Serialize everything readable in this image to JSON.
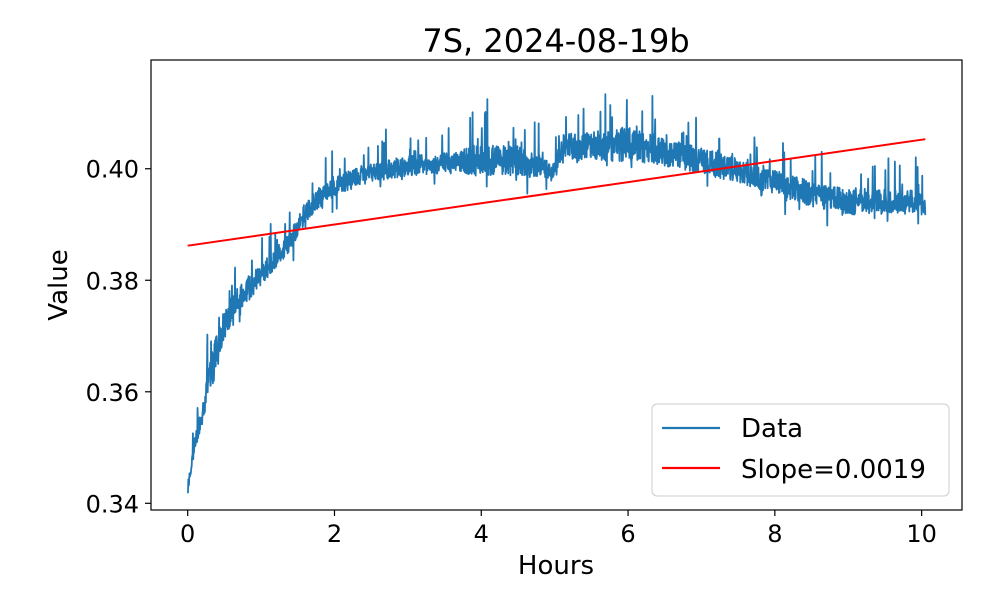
{
  "chart_data": {
    "type": "line",
    "title": "7S, 2024-08-19b",
    "xlabel": "Hours",
    "ylabel": "Value",
    "xlim": [
      -0.5,
      10.55
    ],
    "ylim": [
      0.3388,
      0.4195
    ],
    "x_ticks": [
      0,
      2,
      4,
      6,
      8,
      10
    ],
    "x_tick_labels": [
      "0",
      "2",
      "4",
      "6",
      "8",
      "10"
    ],
    "y_ticks": [
      0.34,
      0.36,
      0.38,
      0.4
    ],
    "y_tick_labels": [
      "0.34",
      "0.36",
      "0.38",
      "0.40"
    ],
    "legend_position": "lower-right",
    "series": [
      {
        "name": "Data",
        "color": "#1f77b4",
        "style": "noisy-line",
        "x": [
          0,
          0.05,
          0.1,
          0.2,
          0.3,
          0.4,
          0.5,
          0.6,
          0.8,
          1.0,
          1.2,
          1.4,
          1.6,
          1.8,
          2.0,
          2.3,
          2.6,
          3.0,
          3.5,
          4.0,
          4.5,
          5.0,
          5.1,
          5.5,
          6.0,
          6.5,
          7.0,
          7.5,
          8.0,
          8.5,
          9.0,
          9.5,
          10.0,
          10.05
        ],
        "values": [
          0.342,
          0.347,
          0.351,
          0.356,
          0.363,
          0.368,
          0.372,
          0.375,
          0.378,
          0.381,
          0.384,
          0.387,
          0.392,
          0.395,
          0.397,
          0.3985,
          0.3995,
          0.4005,
          0.401,
          0.4015,
          0.4015,
          0.3995,
          0.4035,
          0.404,
          0.4045,
          0.403,
          0.4015,
          0.3995,
          0.3975,
          0.3955,
          0.394,
          0.394,
          0.394,
          0.393
        ],
        "noise_amplitude": [
          0.001,
          0.002,
          0.003,
          0.004,
          0.006,
          0.006,
          0.006,
          0.006,
          0.005,
          0.004,
          0.004,
          0.004,
          0.004,
          0.004,
          0.004,
          0.004,
          0.004,
          0.004,
          0.004,
          0.006,
          0.006,
          0.004,
          0.006,
          0.006,
          0.007,
          0.006,
          0.005,
          0.005,
          0.005,
          0.005,
          0.005,
          0.005,
          0.005,
          0.003
        ],
        "samples": 2400
      },
      {
        "name": "Slope=0.0019",
        "color": "#ff0000",
        "style": "line",
        "x": [
          0,
          10.05
        ],
        "values": [
          0.3862,
          0.4053
        ]
      }
    ]
  }
}
